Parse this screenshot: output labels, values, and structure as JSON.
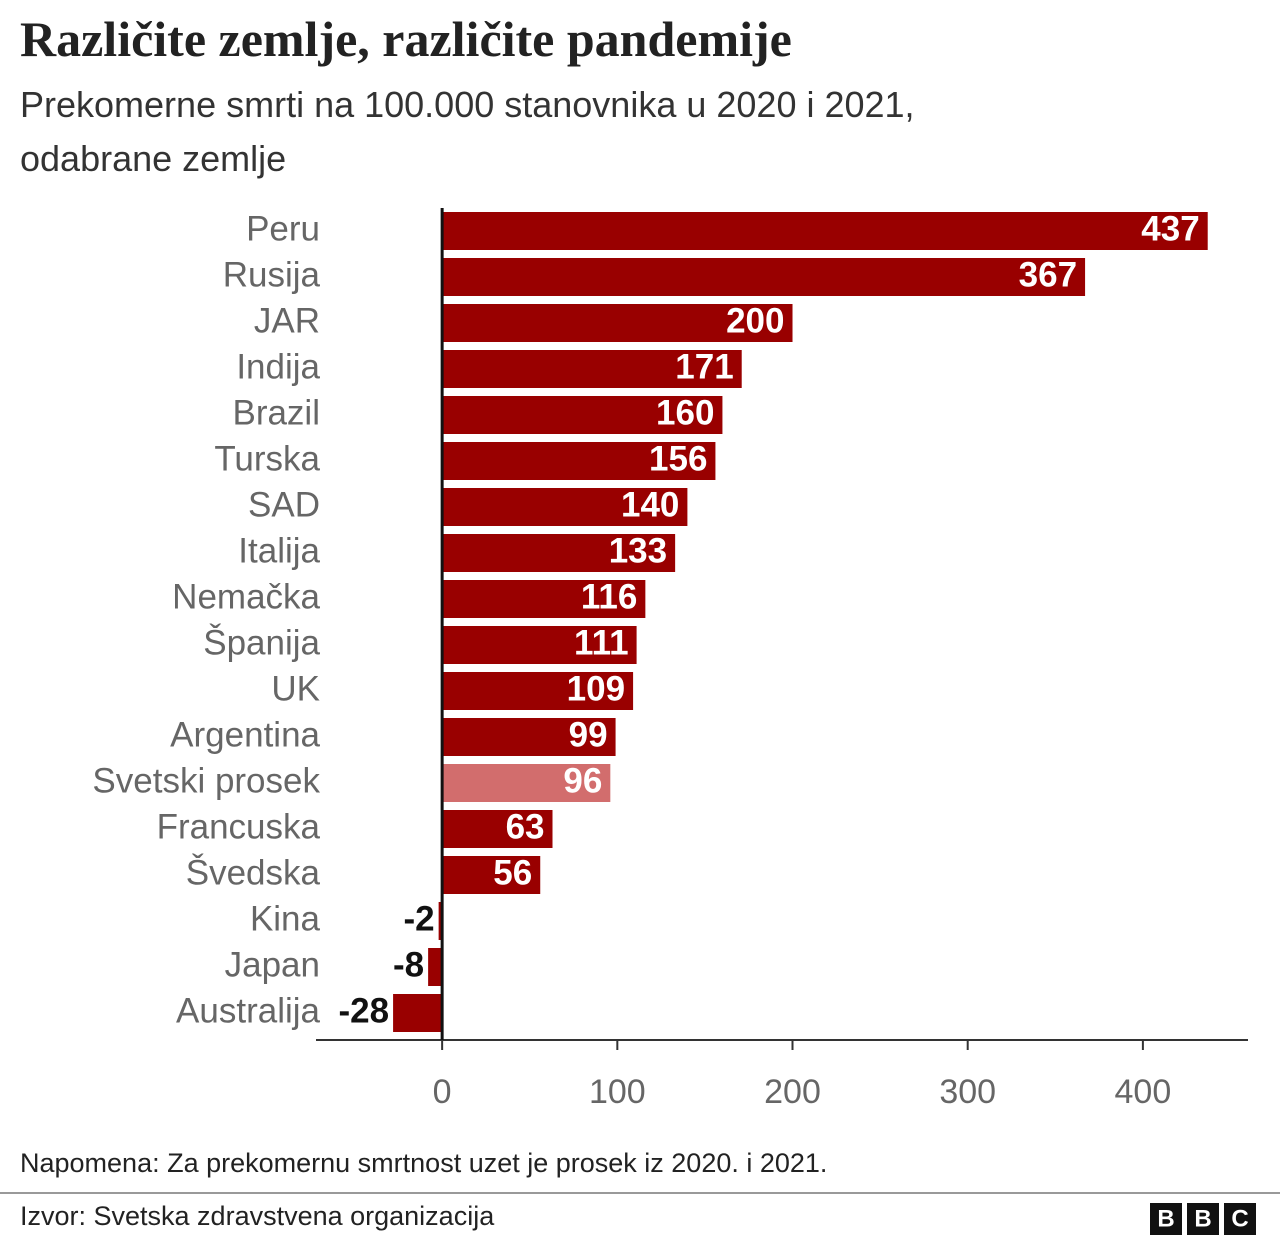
{
  "chart_data": {
    "type": "barh",
    "title": "Različite zemlje, različite pandemije",
    "subtitle": [
      "Prekomerne smrti na 100.000 stanovnika u 2020 i 2021,",
      "odabrane zemlje"
    ],
    "categories": [
      "Peru",
      "Rusija",
      "JAR",
      "Indija",
      "Brazil",
      "Turska",
      "SAD",
      "Italija",
      "Nemačka",
      "Španija",
      "UK",
      "Argentina",
      "Svetski prosek",
      "Francuska",
      "Švedska",
      "Kina",
      "Japan",
      "Australija"
    ],
    "values": [
      437,
      367,
      200,
      171,
      160,
      156,
      140,
      133,
      116,
      111,
      109,
      99,
      96,
      63,
      56,
      -2,
      -8,
      -28
    ],
    "colors": [
      "#990000",
      "#990000",
      "#990000",
      "#990000",
      "#990000",
      "#990000",
      "#990000",
      "#990000",
      "#990000",
      "#990000",
      "#990000",
      "#990000",
      "#d26d6d",
      "#990000",
      "#990000",
      "#990000",
      "#990000",
      "#990000"
    ],
    "xlim": [
      -72,
      460
    ],
    "xticks": [
      0,
      100,
      200,
      300,
      400
    ],
    "note": "Napomena: Za prekomernu smrtnost uzet je prosek iz 2020. i 2021.",
    "source": "Izvor: Svetska zdravstvena organizacija",
    "logo": [
      "B",
      "B",
      "C"
    ]
  }
}
